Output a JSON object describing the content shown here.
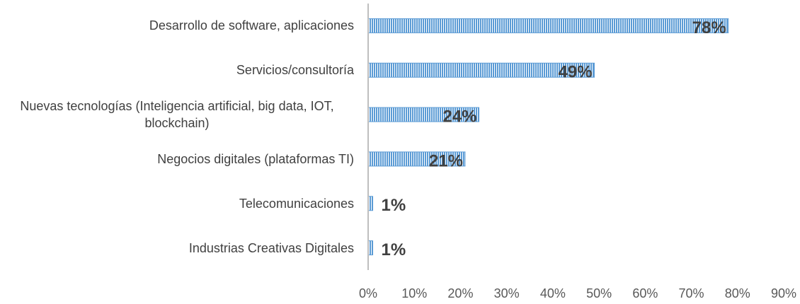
{
  "chart_data": {
    "type": "bar",
    "orientation": "horizontal",
    "categories": [
      "Desarrollo de software, aplicaciones",
      "Servicios/consultoría",
      "Nuevas tecnologías (Inteligencia artificial, big data, IOT, blockchain)",
      "Negocios digitales (plataformas TI)",
      "Telecomunicaciones",
      "Industrias Creativas Digitales"
    ],
    "values": [
      78,
      49,
      24,
      21,
      1,
      1
    ],
    "value_labels": [
      "78%",
      "49%",
      "24%",
      "21%",
      "1%",
      "1%"
    ],
    "color": "#5b9bd5",
    "xlim": [
      0,
      90
    ],
    "xticks": [
      {
        "value": 0,
        "label": "0%"
      },
      {
        "value": 10,
        "label": "10%"
      },
      {
        "value": 20,
        "label": "20%"
      },
      {
        "value": 30,
        "label": "30%"
      },
      {
        "value": 40,
        "label": "40%"
      },
      {
        "value": 50,
        "label": "50%"
      },
      {
        "value": 60,
        "label": "60%"
      },
      {
        "value": 70,
        "label": "70%"
      },
      {
        "value": 80,
        "label": "80%"
      },
      {
        "value": 90,
        "label": "90%"
      }
    ],
    "grid": false
  }
}
